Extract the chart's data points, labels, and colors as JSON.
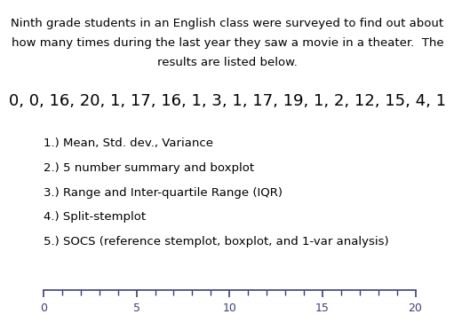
{
  "background_color": "#ffffff",
  "title_line1": "Ninth grade students in an English class were surveyed to find out about",
  "title_line2": "how many times during the last year they saw a movie in a theater.  The",
  "title_line3": "results are listed below.",
  "data_line": "0, 0, 16, 20, 1, 17, 16, 1, 3, 1, 17, 19, 1, 2, 12, 15, 4, 1",
  "list_items": [
    "1.) Mean, Std. dev., Variance",
    "2.) 5 number summary and boxplot",
    "3.) Range and Inter-quartile Range (IQR)",
    "4.) Split-stemplot",
    "5.) SOCS (reference stemplot, boxplot, and 1-var analysis)"
  ],
  "number_line_min": 0,
  "number_line_max": 20,
  "number_line_ticks_major": [
    0,
    5,
    10,
    15,
    20
  ],
  "number_line_ticks_minor_step": 1,
  "text_color": "#000000",
  "numline_color": "#3d3d7a",
  "title_fontsize": 9.5,
  "data_fontsize": 13,
  "list_fontsize": 9.5,
  "numline_fontsize": 9
}
